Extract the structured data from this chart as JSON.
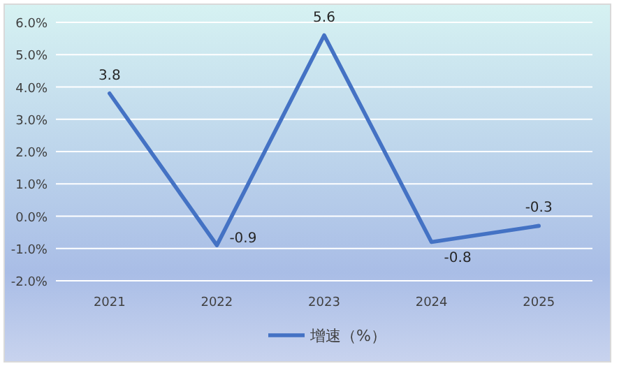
{
  "chart_data": {
    "type": "line",
    "categories": [
      "2021",
      "2022",
      "2023",
      "2024",
      "2025"
    ],
    "series": [
      {
        "name": "增速（%）",
        "color": "#4472c4",
        "values": [
          3.8,
          -0.9,
          5.6,
          -0.8,
          -0.3
        ]
      }
    ],
    "ylim": [
      -2,
      6
    ],
    "yticks": [
      {
        "value": -2,
        "label": "-2.0%"
      },
      {
        "value": -1,
        "label": "-1.0%"
      },
      {
        "value": 0,
        "label": "0.0%"
      },
      {
        "value": 1,
        "label": "1.0%"
      },
      {
        "value": 2,
        "label": "2.0%"
      },
      {
        "value": 3,
        "label": "3.0%"
      },
      {
        "value": 4,
        "label": "4.0%"
      },
      {
        "value": 5,
        "label": "5.0%"
      },
      {
        "value": 6,
        "label": "6.0%"
      }
    ],
    "grid": "y",
    "legend": "bottom",
    "data_labels": true,
    "marker": "none",
    "line_style": "solid"
  }
}
